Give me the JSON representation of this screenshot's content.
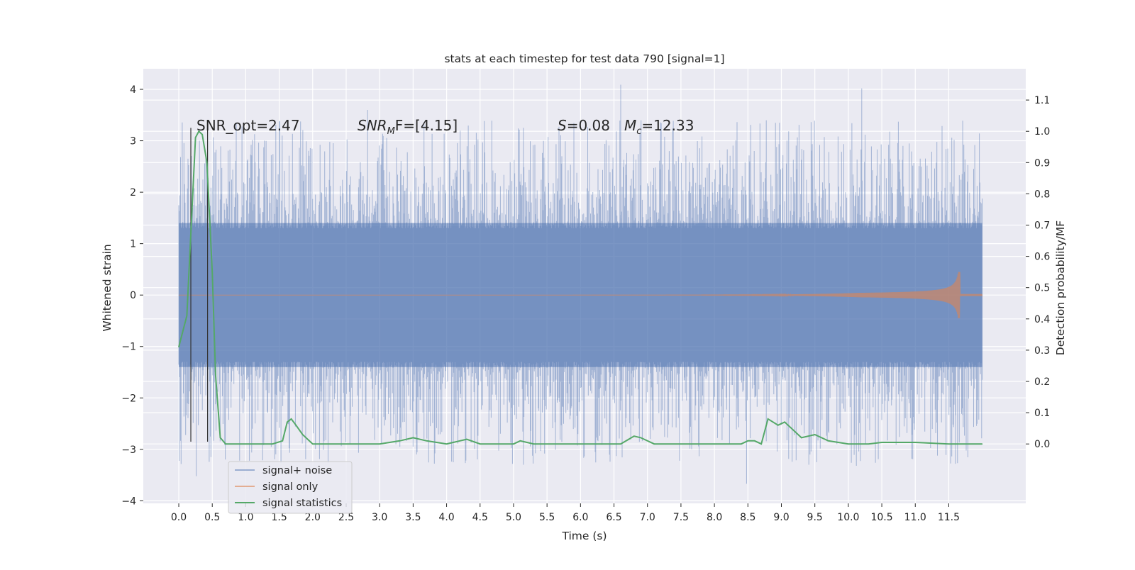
{
  "chart_data": {
    "type": "line",
    "title": "stats at each timestep for test data 790 [signal=1]",
    "xlabel": "Time (s)",
    "ylabel_left": "Whitened strain",
    "ylabel_right": "Detection probability/MF",
    "xlim": [
      -0.53,
      12.65
    ],
    "ylim_left": [
      -4.05,
      4.4
    ],
    "ylim_right": [
      -0.19,
      1.2
    ],
    "grid": true,
    "legend_position": "lower-left",
    "x_ticks": [
      "0.0",
      "0.5",
      "1.0",
      "1.5",
      "2.0",
      "2.5",
      "3.0",
      "3.5",
      "4.0",
      "4.5",
      "5.0",
      "5.5",
      "6.0",
      "6.5",
      "7.0",
      "7.5",
      "8.0",
      "8.5",
      "9.0",
      "9.5",
      "10.0",
      "10.5",
      "11.0",
      "11.5"
    ],
    "x_tick_values": [
      0,
      0.5,
      1,
      1.5,
      2,
      2.5,
      3,
      3.5,
      4,
      4.5,
      5,
      5.5,
      6,
      6.5,
      7,
      7.5,
      8,
      8.5,
      9,
      9.5,
      10,
      10.5,
      11,
      11.5
    ],
    "y_left_ticks": [
      "−4",
      "−3",
      "−2",
      "−1",
      "0",
      "1",
      "2",
      "3",
      "4"
    ],
    "y_left_tick_values": [
      -4,
      -3,
      -2,
      -1,
      0,
      1,
      2,
      3,
      4
    ],
    "y_right_ticks": [
      "0.0",
      "0.1",
      "0.2",
      "0.3",
      "0.4",
      "0.5",
      "0.6",
      "0.7",
      "0.8",
      "0.9",
      "1.0",
      "1.1"
    ],
    "y_right_tick_values": [
      0,
      0.1,
      0.2,
      0.3,
      0.4,
      0.5,
      0.6,
      0.7,
      0.8,
      0.9,
      1.0,
      1.1
    ],
    "annotations": {
      "snr_opt": "SNR_opt=2.47",
      "snr_mf_prefix": "SNR",
      "snr_mf_sub": "M",
      "snr_mf_suffix": "F=[4.15]",
      "s_prefix": "S",
      "s_value": "=0.08",
      "mc_prefix": "M",
      "mc_sub": "c",
      "mc_value": "=12.33"
    },
    "series": [
      {
        "name": "signal+ noise",
        "color": "#4c72b0",
        "axis": "left",
        "note_range": [
          -3.67,
          4.09
        ],
        "x_range": [
          0,
          12.0
        ]
      },
      {
        "name": "signal only",
        "color": "#dd8452",
        "axis": "left",
        "x_range": [
          0,
          12.0
        ],
        "chirp_peak": {
          "x": 11.67,
          "amplitude": 0.45
        }
      },
      {
        "name": "signal statistics",
        "color": "#55a868",
        "axis": "right",
        "x": [
          0.0,
          0.12,
          0.25,
          0.3,
          0.35,
          0.42,
          0.5,
          0.55,
          0.62,
          0.7,
          0.8,
          1.0,
          1.2,
          1.4,
          1.55,
          1.62,
          1.68,
          1.75,
          1.85,
          2.0,
          2.1,
          2.5,
          3.0,
          3.3,
          3.5,
          3.7,
          4.0,
          4.2,
          4.3,
          4.5,
          5.0,
          5.1,
          5.3,
          6.0,
          6.6,
          6.8,
          6.9,
          7.1,
          7.5,
          8.0,
          8.4,
          8.5,
          8.6,
          8.7,
          8.8,
          8.95,
          9.05,
          9.15,
          9.3,
          9.5,
          9.7,
          10.0,
          10.3,
          10.5,
          11.0,
          11.5,
          12.0
        ],
        "y": [
          0.31,
          0.41,
          0.98,
          1.0,
          0.99,
          0.9,
          0.55,
          0.22,
          0.02,
          0.0,
          0.0,
          0.0,
          0.0,
          0.0,
          0.01,
          0.07,
          0.08,
          0.06,
          0.03,
          0.0,
          0.0,
          0.0,
          0.0,
          0.01,
          0.02,
          0.01,
          0.0,
          0.01,
          0.015,
          0.0,
          0.0,
          0.01,
          0.0,
          0.0,
          0.0,
          0.025,
          0.02,
          0.0,
          0.0,
          0.0,
          0.0,
          0.01,
          0.01,
          0.0,
          0.08,
          0.06,
          0.07,
          0.05,
          0.02,
          0.03,
          0.01,
          0.0,
          0.0,
          0.005,
          0.005,
          0.0,
          0.0
        ]
      }
    ],
    "vertical_lines": [
      0.18,
      0.43
    ]
  }
}
